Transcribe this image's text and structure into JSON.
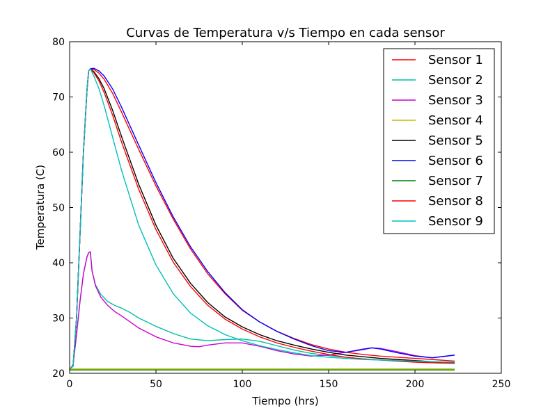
{
  "chart_data": {
    "type": "line",
    "title": "Curvas de Temperatura v/s Tiempo en cada sensor",
    "xlabel": "Tiempo (hrs)",
    "ylabel": "Temperatura (C)",
    "xlim": [
      0,
      250
    ],
    "ylim": [
      20,
      80
    ],
    "xticks": [
      0,
      50,
      100,
      150,
      200,
      250
    ],
    "yticks": [
      20,
      30,
      40,
      50,
      60,
      70,
      80
    ],
    "legend_position": "top-right",
    "grid": false,
    "series": [
      {
        "name": "Sensor 1",
        "color": "#ff0000",
        "x": [
          0,
          2,
          4,
          6,
          8,
          10,
          11,
          12,
          14,
          17,
          20,
          25,
          30,
          40,
          50,
          60,
          70,
          80,
          90,
          100,
          110,
          120,
          130,
          140,
          150,
          160,
          170,
          180,
          190,
          200,
          210,
          223
        ],
        "y": [
          20.8,
          21.3,
          30,
          45,
          60,
          71,
          74.7,
          75.1,
          75.0,
          74.3,
          73.2,
          70.6,
          67.3,
          60.5,
          53.9,
          47.9,
          42.5,
          38.0,
          34.4,
          31.4,
          29.3,
          27.6,
          26.3,
          25.2,
          24.4,
          23.8,
          23.4,
          23.1,
          22.9,
          22.7,
          22.5,
          22.2
        ]
      },
      {
        "name": "Sensor 2",
        "color": "#00bfa0",
        "x": [
          0,
          2,
          4,
          6,
          8,
          10,
          11,
          12,
          13,
          15,
          18,
          22,
          26,
          30,
          35,
          40,
          50,
          60,
          70,
          80,
          90,
          100,
          110,
          120,
          130,
          140,
          150,
          160,
          170,
          180,
          190,
          200,
          210,
          223
        ],
        "y": [
          20.7,
          21.5,
          27,
          33,
          38,
          41,
          41.8,
          42.0,
          38.5,
          36.0,
          34.3,
          33.0,
          32.3,
          31.8,
          31.0,
          30.0,
          28.5,
          27.2,
          26.2,
          25.9,
          26.1,
          26.2,
          25.8,
          25.0,
          24.2,
          23.6,
          23.2,
          22.9,
          22.6,
          22.4,
          22.3,
          22.1,
          22.0,
          21.9
        ]
      },
      {
        "name": "Sensor 3",
        "color": "#cc00cc",
        "x": [
          0,
          2,
          4,
          6,
          8,
          10,
          11,
          12,
          13,
          15,
          18,
          22,
          26,
          30,
          35,
          40,
          50,
          60,
          70,
          75,
          80,
          90,
          100,
          110,
          120,
          130,
          140,
          150,
          160,
          170,
          175,
          180,
          190,
          200,
          210,
          223
        ],
        "y": [
          20.7,
          21.5,
          27,
          33,
          38,
          41,
          41.8,
          42.0,
          38.5,
          35.8,
          33.8,
          32.3,
          31.2,
          30.4,
          29.3,
          28.2,
          26.6,
          25.5,
          24.9,
          24.8,
          25.1,
          25.5,
          25.5,
          24.9,
          24.1,
          23.5,
          23.1,
          23.3,
          23.8,
          24.4,
          24.6,
          24.5,
          23.9,
          23.2,
          22.8,
          23.3
        ]
      },
      {
        "name": "Sensor 4",
        "color": "#bfbf00",
        "x": [
          0,
          50,
          100,
          150,
          200,
          223
        ],
        "y": [
          20.8,
          20.8,
          20.8,
          20.8,
          20.8,
          20.8
        ]
      },
      {
        "name": "Sensor 5",
        "color": "#000000",
        "x": [
          0,
          2,
          4,
          6,
          8,
          10,
          11,
          12,
          14,
          17,
          20,
          25,
          30,
          40,
          50,
          60,
          70,
          80,
          90,
          100,
          110,
          120,
          130,
          140,
          150,
          160,
          170,
          180,
          190,
          200,
          210,
          223
        ],
        "y": [
          20.8,
          21.3,
          30,
          45,
          60,
          71,
          74.7,
          75.1,
          74.6,
          73.3,
          71.5,
          67.5,
          62.9,
          54.2,
          46.8,
          40.8,
          36.3,
          32.8,
          30.2,
          28.4,
          27.0,
          25.9,
          25.1,
          24.4,
          23.8,
          23.3,
          23.0,
          22.7,
          22.5,
          22.3,
          22.1,
          21.9
        ]
      },
      {
        "name": "Sensor 6",
        "color": "#0000ff",
        "x": [
          0,
          2,
          4,
          6,
          8,
          10,
          11,
          12,
          14,
          17,
          20,
          25,
          30,
          40,
          50,
          60,
          70,
          80,
          90,
          100,
          110,
          120,
          130,
          140,
          150,
          160,
          170,
          175,
          180,
          190,
          200,
          210,
          223
        ],
        "y": [
          20.8,
          21.3,
          30,
          45,
          60,
          71,
          74.7,
          75.1,
          75.2,
          74.7,
          73.8,
          71.4,
          68.2,
          61.3,
          54.5,
          48.3,
          42.9,
          38.4,
          34.6,
          31.5,
          29.3,
          27.6,
          26.2,
          25.0,
          24.1,
          23.8,
          24.3,
          24.6,
          24.4,
          23.7,
          23.1,
          22.8,
          23.3
        ]
      },
      {
        "name": "Sensor 7",
        "color": "#008000",
        "x": [
          0,
          2,
          4,
          6,
          8,
          10,
          11,
          12,
          13,
          15,
          18,
          22,
          26,
          30,
          35,
          40,
          50,
          60,
          70,
          80,
          90,
          100,
          110,
          120,
          130,
          140,
          150,
          160,
          170,
          180,
          190,
          200,
          210,
          223
        ],
        "y": [
          20.6,
          20.6,
          20.6,
          20.6,
          20.6,
          20.6,
          20.6,
          20.6,
          20.6,
          20.6,
          20.6,
          20.6,
          20.6,
          20.6,
          20.6,
          20.6,
          20.6,
          20.6,
          20.6,
          20.6,
          20.6,
          20.6,
          20.6,
          20.6,
          20.6,
          20.6,
          20.6,
          20.6,
          20.6,
          20.6,
          20.6,
          20.6,
          20.6,
          20.6
        ]
      },
      {
        "name": "Sensor 8",
        "color": "#ff0000",
        "x": [
          0,
          2,
          4,
          6,
          8,
          10,
          11,
          12,
          14,
          17,
          20,
          25,
          30,
          40,
          50,
          60,
          70,
          80,
          90,
          100,
          110,
          120,
          130,
          140,
          150,
          160,
          170,
          180,
          190,
          200,
          210,
          223
        ],
        "y": [
          20.8,
          21.3,
          30,
          45,
          60,
          71,
          74.7,
          75.1,
          74.4,
          72.9,
          70.8,
          66.6,
          61.9,
          53.3,
          46.0,
          40.1,
          35.7,
          32.3,
          29.8,
          28.0,
          26.6,
          25.5,
          24.7,
          24.0,
          23.4,
          22.9,
          22.6,
          22.4,
          22.2,
          22.0,
          21.9,
          21.8
        ]
      },
      {
        "name": "Sensor 9",
        "color": "#00bfbf",
        "x": [
          0,
          2,
          4,
          6,
          8,
          10,
          11,
          12,
          14,
          17,
          20,
          25,
          30,
          40,
          50,
          60,
          70,
          80,
          90,
          100,
          110,
          120,
          130,
          140,
          150,
          160,
          170,
          180,
          190,
          200,
          210,
          223
        ],
        "y": [
          20.8,
          21.3,
          30,
          45,
          60,
          71,
          74.7,
          75.1,
          73.8,
          71.5,
          68.4,
          62.6,
          56.8,
          46.8,
          39.6,
          34.4,
          30.9,
          28.6,
          27.0,
          25.9,
          25.0,
          24.3,
          23.7,
          23.2,
          22.9,
          22.7,
          22.5,
          22.4,
          22.3,
          22.2,
          22.1,
          22.0
        ]
      }
    ]
  }
}
